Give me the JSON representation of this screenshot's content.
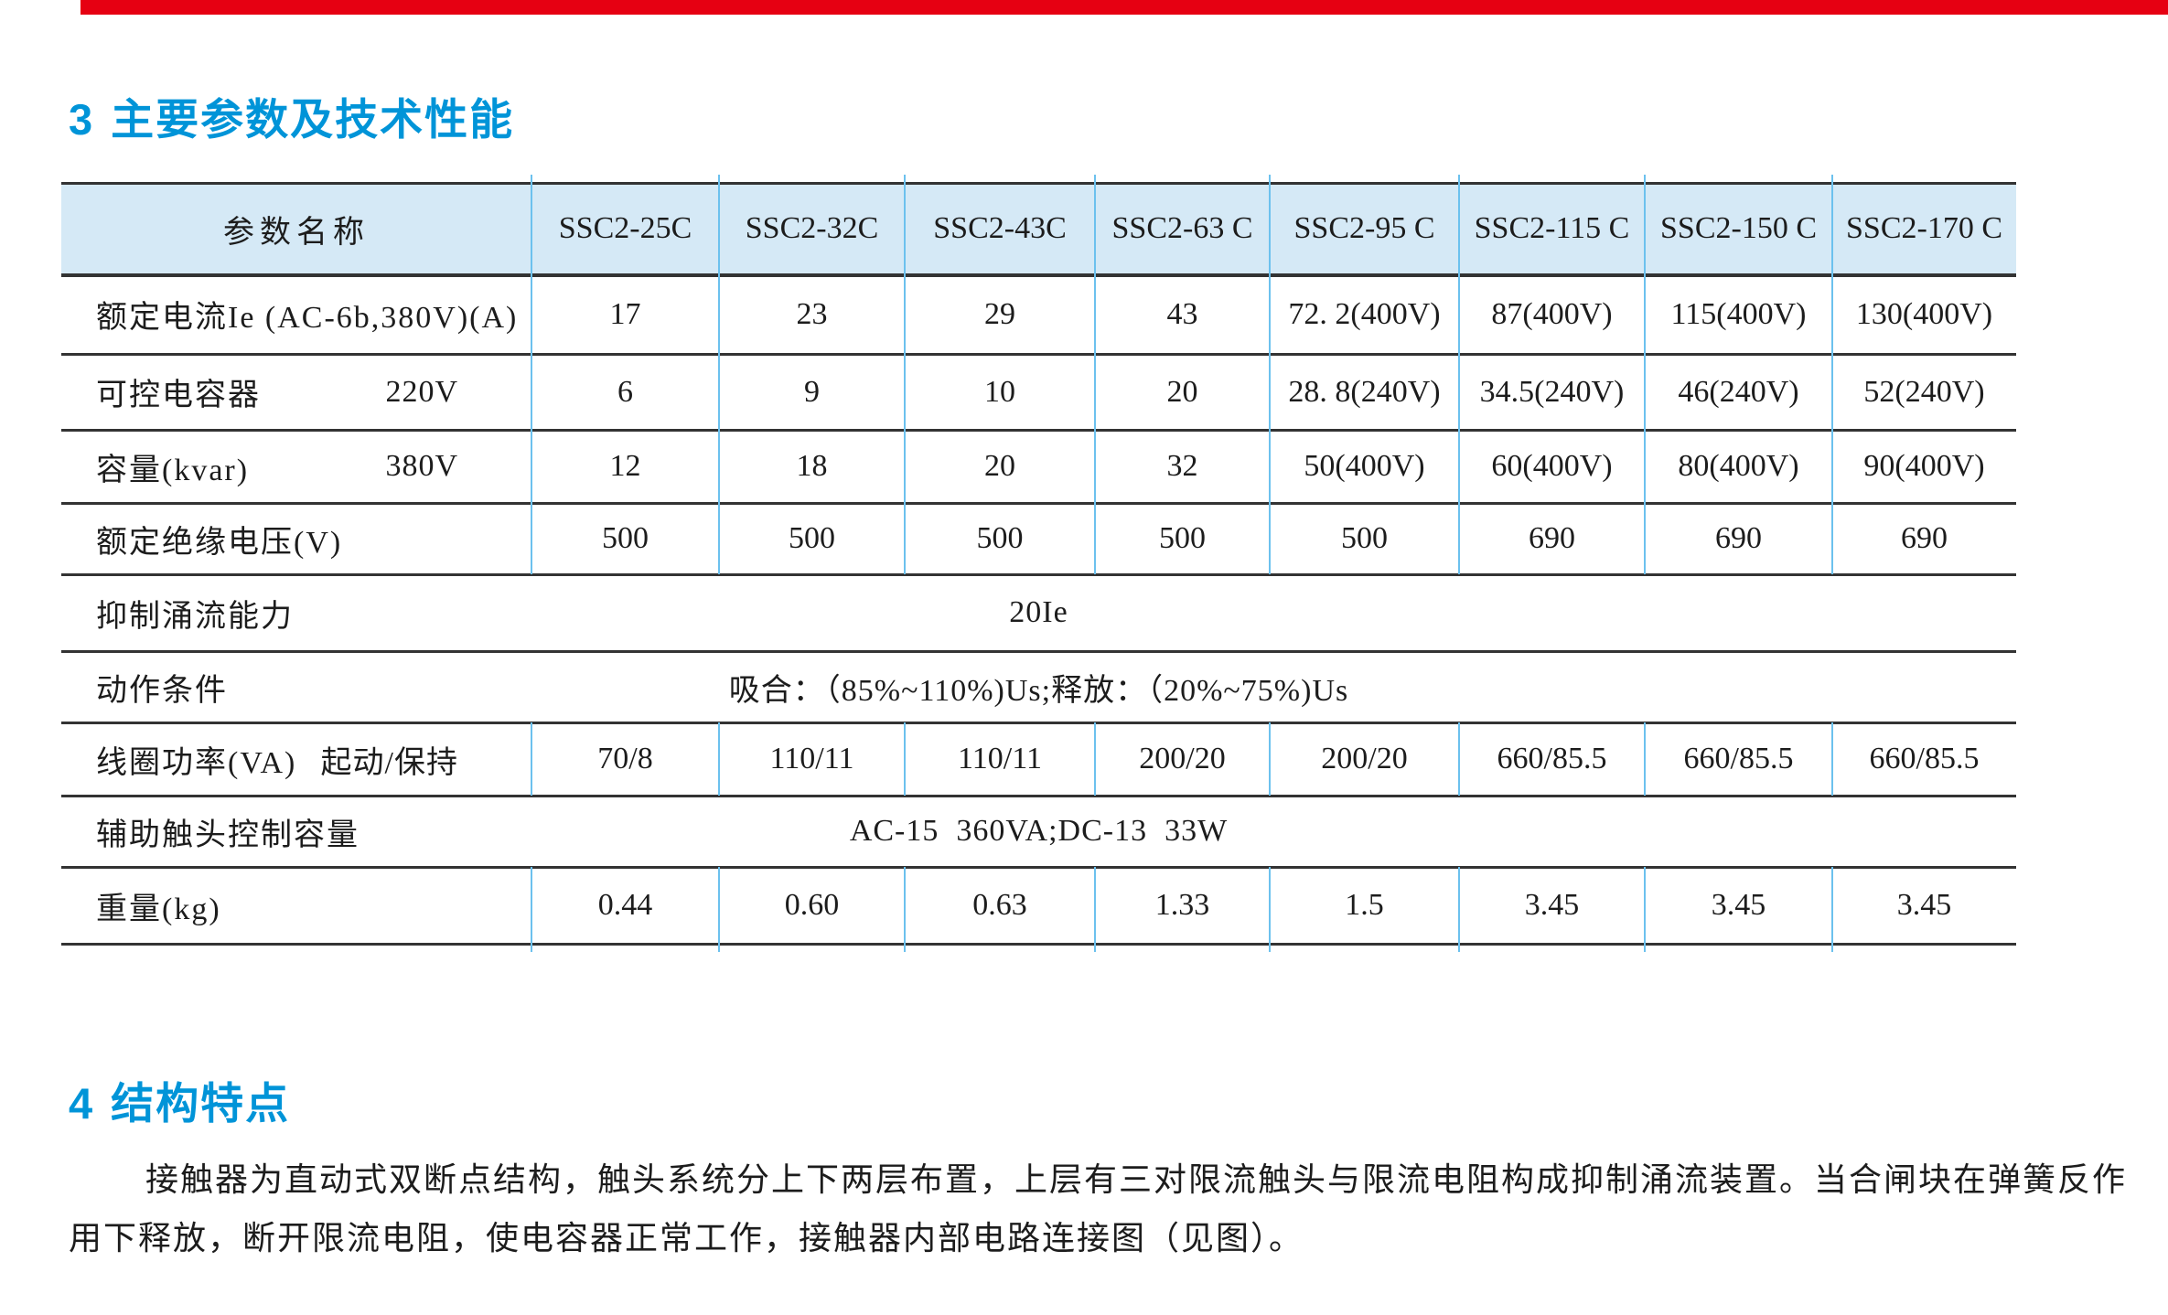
{
  "colors": {
    "accent_red": "#e60012",
    "accent_blue": "#0094d8",
    "table_header_bg": "#d5e9f6",
    "grid_blue": "#6cc1ee",
    "rule_dark": "#333333"
  },
  "section3": {
    "number": "3",
    "title": "主要参数及技术性能"
  },
  "table": {
    "param_header": "参数名称",
    "models": [
      "SSC2-25C",
      "SSC2-32C",
      "SSC2-43C",
      "SSC2-63 C",
      "SSC2-95 C",
      "SSC2-115 C",
      "SSC2-150 C",
      "SSC2-170 C"
    ],
    "rows": [
      {
        "label": "额定电流Ie (AC-6b,380V)(A)",
        "values": [
          "17",
          "23",
          "29",
          "43",
          "72. 2(400V)",
          "87(400V)",
          "115(400V)",
          "130(400V)"
        ]
      },
      {
        "label": "可控电容器",
        "sublabel": "220V",
        "values": [
          "6",
          "9",
          "10",
          "20",
          "28. 8(240V)",
          "34.5(240V)",
          "46(240V)",
          "52(240V)"
        ]
      },
      {
        "label": "容量(kvar)",
        "sublabel": "380V",
        "values": [
          "12",
          "18",
          "20",
          "32",
          "50(400V)",
          "60(400V)",
          "80(400V)",
          "90(400V)"
        ]
      },
      {
        "label": "额定绝缘电压(V)",
        "values": [
          "500",
          "500",
          "500",
          "500",
          "500",
          "690",
          "690",
          "690"
        ]
      },
      {
        "label": "抑制涌流能力",
        "span_value": "20Ie"
      },
      {
        "label": "动作条件",
        "span_value": "吸合：（85%~110%)Us;释放：（20%~75%)Us"
      },
      {
        "label": "线圈功率(VA)",
        "sublabel": "起动/保持",
        "values": [
          "70/8",
          "110/11",
          "110/11",
          "200/20",
          "200/20",
          "660/85.5",
          "660/85.5",
          "660/85.5"
        ]
      },
      {
        "label": "辅助触头控制容量",
        "span_value": "AC-15  360VA;DC-13  33W"
      },
      {
        "label": "重量(kg)",
        "values": [
          "0.44",
          "0.60",
          "0.63",
          "1.33",
          "1.5",
          "3.45",
          "3.45",
          "3.45"
        ]
      }
    ]
  },
  "section4": {
    "number": "4",
    "title": "结构特点",
    "paragraph_line1": "接触器为直动式双断点结构，触头系统分上下两层布置，上层有三对限流触头与限流电阻构成抑制涌流装置。当合闸块在弹簧反作",
    "paragraph_line2": "用下释放，断开限流电阻，使电容器正常工作，接触器内部电路连接图（见图）。"
  }
}
